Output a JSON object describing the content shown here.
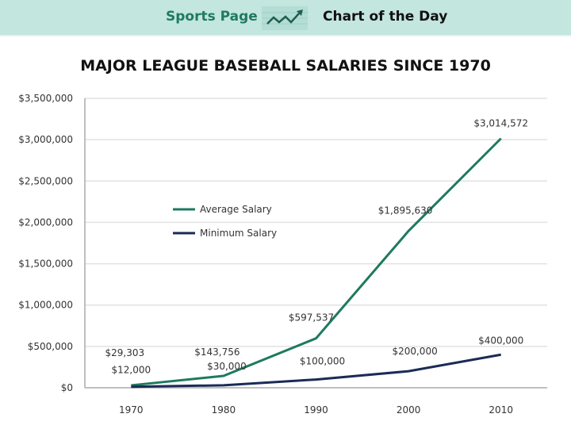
{
  "header": {
    "left": "Sports Page",
    "right": "Chart of the Day",
    "icon": "trend-line-icon",
    "bg": "#c3e6df"
  },
  "chart_data": {
    "type": "line",
    "title": "MAJOR LEAGUE BASEBALL SALARIES SINCE 1970",
    "categories": [
      "1970",
      "1980",
      "1990",
      "2000",
      "2010"
    ],
    "ylim": [
      0,
      3500000
    ],
    "yticks": [
      "$0",
      "$500,000",
      "$1,000,000",
      "$1,500,000",
      "$2,000,000",
      "$2,500,000",
      "$3,000,000",
      "$3,500,000"
    ],
    "grid": true,
    "legend": "center-left",
    "series": [
      {
        "name": "Average Salary",
        "color": "#1e7a5f",
        "values": [
          29303,
          143756,
          597537,
          1895630,
          3014572
        ],
        "labels": [
          "$29,303",
          "$143,756",
          "$597,537",
          "$1,895,630",
          "$3,014,572"
        ]
      },
      {
        "name": "Minimum Salary",
        "color": "#1b2b57",
        "values": [
          12000,
          30000,
          100000,
          200000,
          400000
        ],
        "labels": [
          "$12,000",
          "$30,000",
          "$100,000",
          "$200,000",
          "$400,000"
        ]
      }
    ]
  }
}
